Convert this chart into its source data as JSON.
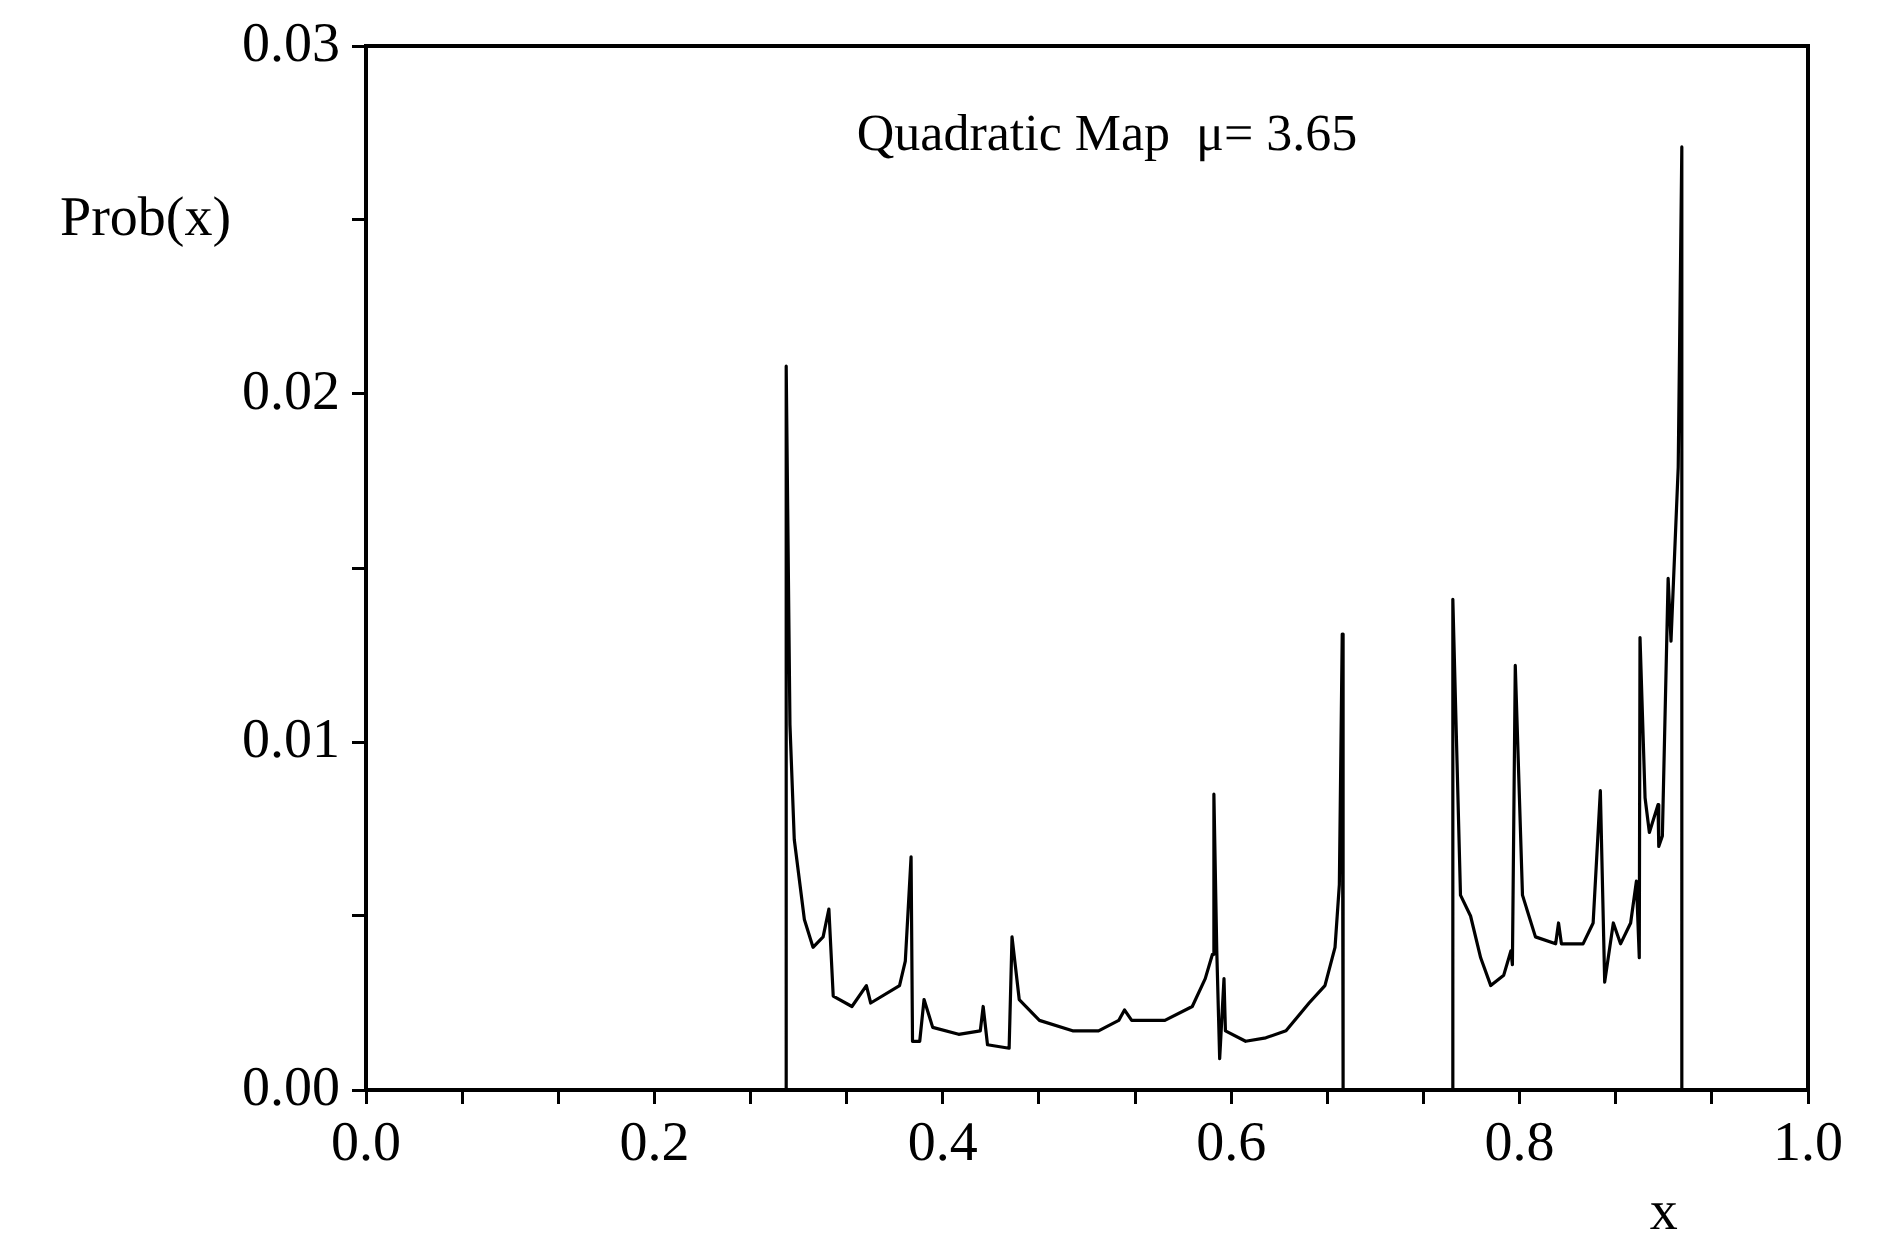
{
  "chart_data": {
    "type": "line",
    "title": "Quadratic Map  μ= 3.65",
    "xlabel": "x",
    "ylabel": "Prob(x)",
    "color": "#000000",
    "x": [
      0,
      0.2914,
      0.2914,
      0.294,
      0.297,
      0.304,
      0.31,
      0.317,
      0.321,
      0.324,
      0.337,
      0.347,
      0.35,
      0.37,
      0.374,
      0.378,
      0.379,
      0.384,
      0.387,
      0.393,
      0.411,
      0.426,
      0.428,
      0.431,
      0.446,
      0.448,
      0.453,
      0.467,
      0.49,
      0.508,
      0.522,
      0.526,
      0.531,
      0.554,
      0.573,
      0.582,
      0.587,
      0.588,
      0.59,
      0.592,
      0.595,
      0.596,
      0.61,
      0.624,
      0.638,
      0.654,
      0.665,
      0.672,
      0.675,
      0.677,
      0.6776,
      0.7537,
      0.7537,
      0.759,
      0.766,
      0.773,
      0.78,
      0.789,
      0.794,
      0.795,
      0.797,
      0.802,
      0.811,
      0.825,
      0.827,
      0.829,
      0.844,
      0.851,
      0.856,
      0.859,
      0.865,
      0.87,
      0.877,
      0.881,
      0.883,
      0.8835,
      0.887,
      0.89,
      0.896,
      0.8965,
      0.899,
      0.903,
      0.905,
      0.91,
      0.9125,
      0.9125,
      1
    ],
    "values": [
      0,
      0,
      0.0208,
      0.0105,
      0.0072,
      0.0049,
      0.0041,
      0.0044,
      0.0052,
      0.0027,
      0.0024,
      0.003,
      0.0025,
      0.003,
      0.0037,
      0.0067,
      0.0014,
      0.0014,
      0.0026,
      0.0018,
      0.0016,
      0.0017,
      0.0024,
      0.0013,
      0.0012,
      0.0044,
      0.0026,
      0.002,
      0.0017,
      0.0017,
      0.002,
      0.0023,
      0.002,
      0.002,
      0.0024,
      0.0032,
      0.0039,
      0.0085,
      0.004,
      0.0009,
      0.0032,
      0.0017,
      0.0014,
      0.0015,
      0.0017,
      0.0025,
      0.003,
      0.0041,
      0.0059,
      0.0131,
      0,
      0,
      0.0141,
      0.0056,
      0.005,
      0.0038,
      0.003,
      0.0033,
      0.004,
      0.0036,
      0.0122,
      0.0056,
      0.0044,
      0.0042,
      0.0048,
      0.0042,
      0.0042,
      0.0048,
      0.0086,
      0.0031,
      0.0048,
      0.0042,
      0.0048,
      0.006,
      0.0038,
      0.013,
      0.0084,
      0.0074,
      0.0082,
      0.007,
      0.0073,
      0.0147,
      0.0129,
      0.0179,
      0.0271,
      0,
      0
    ],
    "xlim": [
      0,
      1
    ],
    "ylim": [
      0,
      0.03
    ],
    "xticks": [
      {
        "value": 0,
        "label": "0.0"
      },
      {
        "value": 0.0667,
        "label": null
      },
      {
        "value": 0.1333,
        "label": null
      },
      0.2,
      {
        "value": 0.2667,
        "label": null
      },
      {
        "value": 0.3333,
        "label": null
      },
      0.4,
      {
        "value": 0.4667,
        "label": null
      },
      {
        "value": 0.5333,
        "label": null
      },
      0.6,
      {
        "value": 0.6667,
        "label": null
      },
      {
        "value": 0.7333,
        "label": null
      },
      0.8,
      {
        "value": 0.8667,
        "label": null
      },
      {
        "value": 0.9333,
        "label": null
      },
      {
        "value": 1,
        "label": "1.0"
      }
    ],
    "yticks": [
      {
        "value": 0,
        "label": "0.00"
      },
      {
        "value": 0.005,
        "label": null
      },
      0.01,
      {
        "value": 0.015,
        "label": null
      },
      0.02,
      {
        "value": 0.025,
        "label": null
      },
      0.03
    ]
  }
}
